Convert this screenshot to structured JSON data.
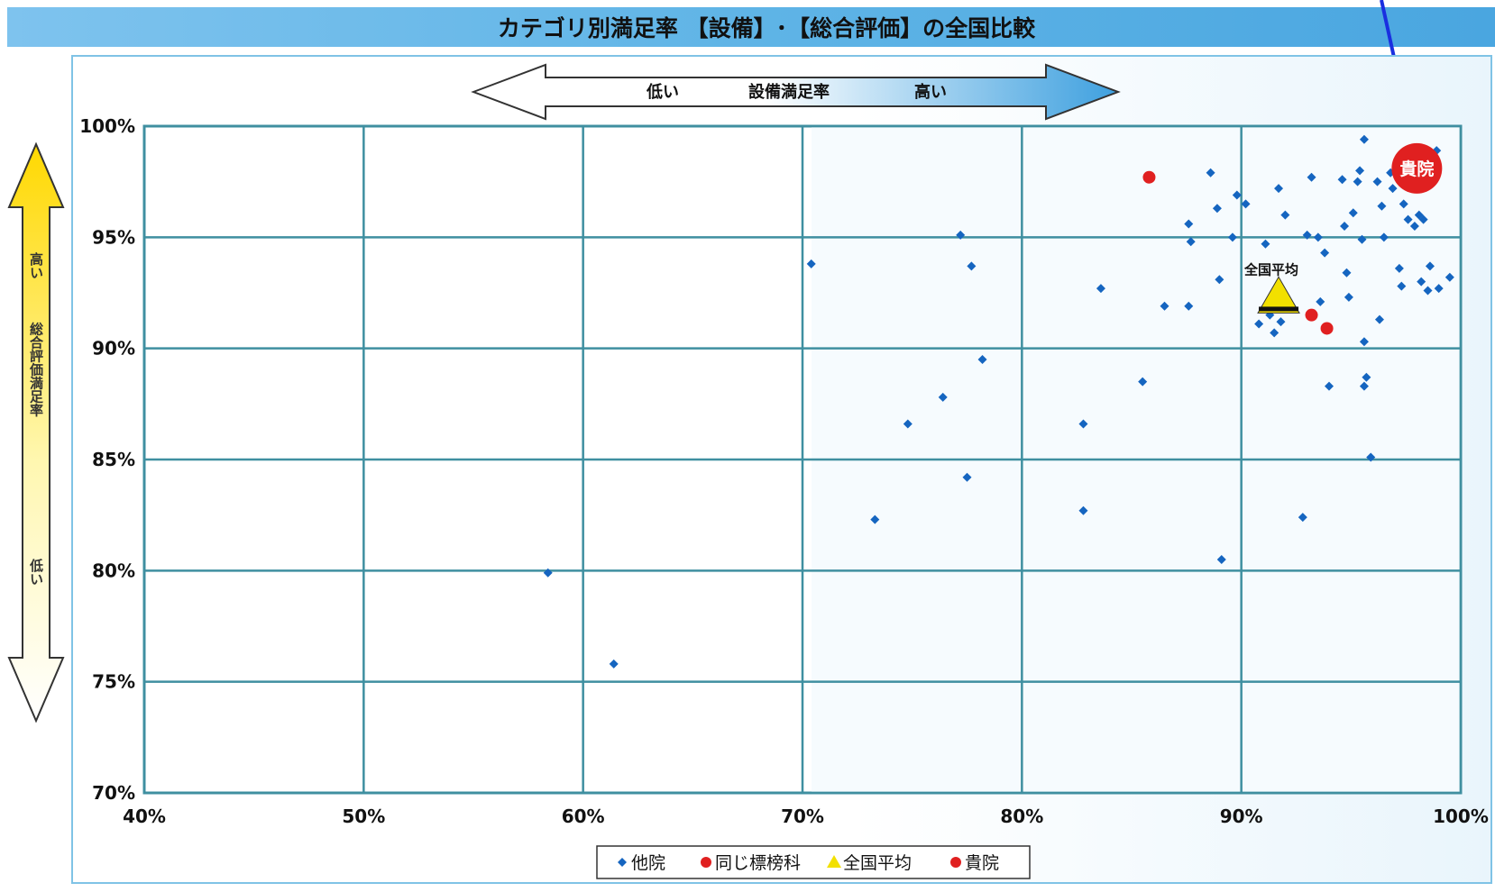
{
  "page": {
    "title": "カテゴリ別満足率 【設備】･【総合評価】の全国比較",
    "x_arrow": {
      "low": "低い",
      "mid": "設備満足率",
      "high": "高い"
    },
    "y_arrow": {
      "high": "高い",
      "mid": "総合評価満足率",
      "low": "低い"
    },
    "avg_label": "全国平均",
    "self_label": "貴院",
    "legend": [
      {
        "key": "other",
        "label": "他院",
        "color": "#1565c0",
        "marker": "diamond"
      },
      {
        "key": "same",
        "label": "同じ標榜科",
        "color": "#e02020",
        "marker": "circle"
      },
      {
        "key": "avg",
        "label": "全国平均",
        "color": "#f2e000",
        "marker": "triangle"
      },
      {
        "key": "self",
        "label": "貴院",
        "color": "#e02020",
        "marker": "circle"
      }
    ],
    "colors": {
      "grid": "#3f8fa0",
      "band": "#5fb4e6",
      "panel_bg": "#f7fbff"
    }
  },
  "chart_data": {
    "type": "scatter",
    "title": "カテゴリ別満足率 【設備】･【総合評価】の全国比較",
    "xlabel": "設備満足率",
    "ylabel": "総合評価満足率",
    "xlim": [
      40,
      100
    ],
    "ylim": [
      70,
      100
    ],
    "x_ticks": [
      "40%",
      "50%",
      "60%",
      "70%",
      "80%",
      "90%",
      "100%"
    ],
    "y_ticks": [
      "70%",
      "75%",
      "80%",
      "85%",
      "90%",
      "95%",
      "100%"
    ],
    "grid": true,
    "legend_position": "bottom",
    "series": [
      {
        "name": "他院",
        "points": [
          [
            58.4,
            79.9
          ],
          [
            61.4,
            75.8
          ],
          [
            70.4,
            93.8
          ],
          [
            73.3,
            82.3
          ],
          [
            74.8,
            86.6
          ],
          [
            76.4,
            87.8
          ],
          [
            77.2,
            95.1
          ],
          [
            77.5,
            84.2
          ],
          [
            77.7,
            93.7
          ],
          [
            78.2,
            89.5
          ],
          [
            82.8,
            86.6
          ],
          [
            82.8,
            82.7
          ],
          [
            83.6,
            92.7
          ],
          [
            85.5,
            88.5
          ],
          [
            86.5,
            91.9
          ],
          [
            87.6,
            95.6
          ],
          [
            87.6,
            91.9
          ],
          [
            87.7,
            94.8
          ],
          [
            88.6,
            97.9
          ],
          [
            88.9,
            96.3
          ],
          [
            89.0,
            93.1
          ],
          [
            89.1,
            80.5
          ],
          [
            89.6,
            95.0
          ],
          [
            89.8,
            96.9
          ],
          [
            90.2,
            96.5
          ],
          [
            90.8,
            91.1
          ],
          [
            91.1,
            94.7
          ],
          [
            91.3,
            91.5
          ],
          [
            91.5,
            90.7
          ],
          [
            91.7,
            97.2
          ],
          [
            91.8,
            91.2
          ],
          [
            92.0,
            96.0
          ],
          [
            92.8,
            82.4
          ],
          [
            93.0,
            95.1
          ],
          [
            93.2,
            97.7
          ],
          [
            93.5,
            95.0
          ],
          [
            93.6,
            92.1
          ],
          [
            93.8,
            94.3
          ],
          [
            94.0,
            88.3
          ],
          [
            94.6,
            97.6
          ],
          [
            94.7,
            95.5
          ],
          [
            94.8,
            93.4
          ],
          [
            94.9,
            92.3
          ],
          [
            95.1,
            96.1
          ],
          [
            95.3,
            97.5
          ],
          [
            95.4,
            98.0
          ],
          [
            95.6,
            99.4
          ],
          [
            95.5,
            94.9
          ],
          [
            95.6,
            88.3
          ],
          [
            95.7,
            88.7
          ],
          [
            95.9,
            85.1
          ],
          [
            96.2,
            97.5
          ],
          [
            96.3,
            91.3
          ],
          [
            96.4,
            96.4
          ],
          [
            96.5,
            95.0
          ],
          [
            96.8,
            97.9
          ],
          [
            96.9,
            97.2
          ],
          [
            97.2,
            93.6
          ],
          [
            97.3,
            92.8
          ],
          [
            97.4,
            96.5
          ],
          [
            97.6,
            95.8
          ],
          [
            97.7,
            97.8
          ],
          [
            97.9,
            95.5
          ],
          [
            98.0,
            97.3
          ],
          [
            98.1,
            96.0
          ],
          [
            98.2,
            93.0
          ],
          [
            98.3,
            95.8
          ],
          [
            98.4,
            98.6
          ],
          [
            98.5,
            92.6
          ],
          [
            98.6,
            93.7
          ],
          [
            98.9,
            98.9
          ],
          [
            99.0,
            92.7
          ],
          [
            99.5,
            93.2
          ],
          [
            95.6,
            90.3
          ]
        ]
      },
      {
        "name": "同じ標榜科",
        "points": [
          [
            85.8,
            97.7
          ],
          [
            93.2,
            91.5
          ],
          [
            93.9,
            90.9
          ]
        ]
      },
      {
        "name": "全国平均",
        "points": [
          [
            91.7,
            92.2
          ]
        ]
      },
      {
        "name": "貴院",
        "points": [
          [
            98.0,
            98.1
          ]
        ]
      }
    ]
  }
}
